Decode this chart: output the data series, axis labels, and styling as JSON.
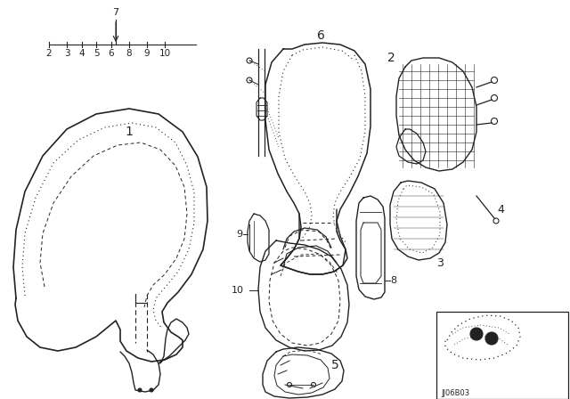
{
  "bg_color": "#ffffff",
  "line_color": "#222222",
  "diagram_code": "JJ06B03"
}
